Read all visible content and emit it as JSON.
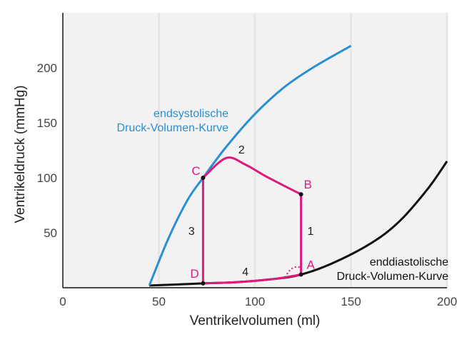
{
  "chart_data": {
    "type": "line",
    "xlabel": "Ventrikelvolumen (ml)",
    "ylabel": "Ventrikeldruck (mmHg)",
    "xlim": [
      0,
      200
    ],
    "ylim": [
      0,
      250
    ],
    "x_ticks": [
      0,
      50,
      100,
      150,
      200
    ],
    "y_ticks": [
      50,
      100,
      150,
      200
    ],
    "grid": "vertical",
    "colors": {
      "endsystolic": "#2a8fd0",
      "enddiastolic": "#111111",
      "loop": "#e0197c",
      "grid": "#e6e6e6",
      "plot_bg": "#f2f2f2"
    },
    "series": [
      {
        "key": "endsystolic",
        "name_lines": [
          "endsystolische",
          "Druck-Volumen-Kurve"
        ],
        "x": [
          45,
          55,
          65,
          73,
          85,
          100,
          115,
          130,
          150
        ],
        "y": [
          2,
          45,
          80,
          100,
          128,
          158,
          182,
          200,
          220
        ]
      },
      {
        "key": "enddiastolic",
        "name_lines": [
          "enddiastolische",
          "Druck-Volumen-Kurve"
        ],
        "x": [
          45,
          60,
          73,
          90,
          110,
          124,
          140,
          160,
          175,
          190,
          200
        ],
        "y": [
          2,
          3,
          4,
          5,
          8,
          12,
          22,
          40,
          60,
          90,
          115
        ]
      },
      {
        "key": "loop",
        "x": [
          73,
          90,
          110,
          124,
          124,
          116,
          105,
          95,
          85,
          73,
          73,
          80,
          88,
          93,
          100,
          112,
          124
        ],
        "y": [
          4,
          5,
          8,
          12,
          85,
          92,
          102,
          112,
          118,
          100,
          4,
          4,
          4,
          4,
          4,
          4,
          4
        ]
      }
    ],
    "points": [
      {
        "name": "A",
        "x": 124,
        "y": 12
      },
      {
        "name": "B",
        "x": 124,
        "y": 85
      },
      {
        "name": "C",
        "x": 73,
        "y": 100
      },
      {
        "name": "D",
        "x": 73,
        "y": 4
      }
    ],
    "phase_labels": [
      {
        "text": "1",
        "x": 129,
        "y": 48
      },
      {
        "text": "2",
        "x": 93,
        "y": 122
      },
      {
        "text": "3",
        "x": 67,
        "y": 48
      },
      {
        "text": "4",
        "x": 95,
        "y": 11
      }
    ]
  }
}
